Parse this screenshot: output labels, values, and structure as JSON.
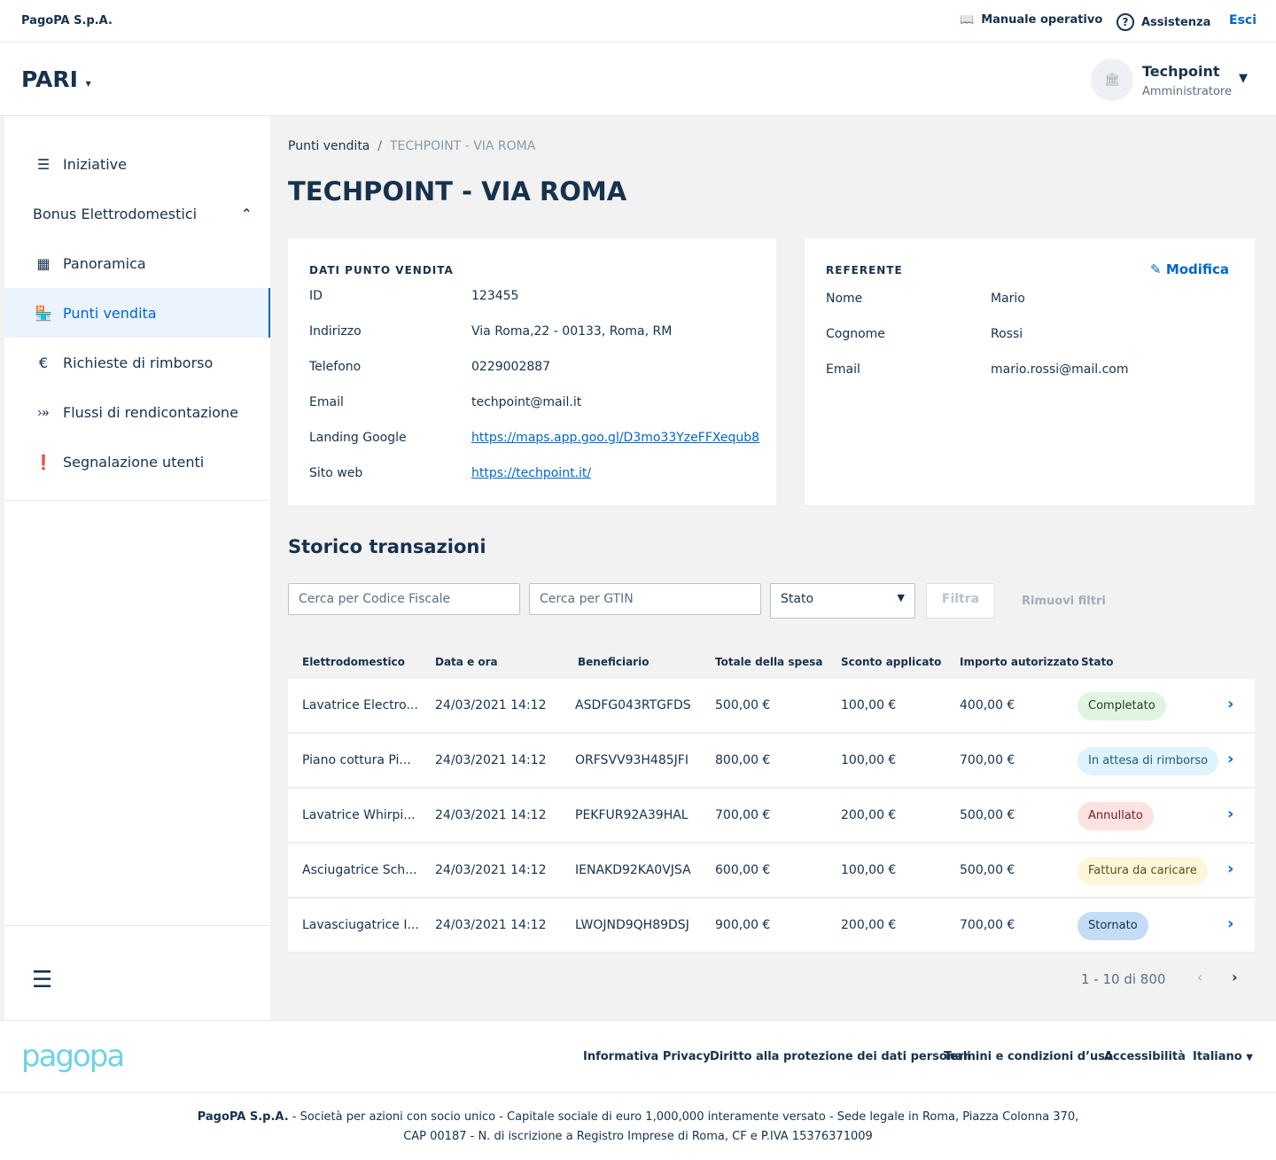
{
  "topbar": {
    "org": "PagoPA S.p.A.",
    "manual": "Manuale operativo",
    "help": "Assistenza",
    "logout": "Esci"
  },
  "header": {
    "product": "PARI",
    "party": "Techpoint",
    "role": "Amministratore"
  },
  "sidebar": {
    "items": [
      {
        "label": "Iniziative",
        "icon": "list-icon"
      },
      {
        "label": "Bonus Elettrodomestici",
        "icon": "chevron-up-icon"
      },
      {
        "label": "Panoramica",
        "icon": "dashboard-icon"
      },
      {
        "label": "Punti vendita",
        "icon": "store-icon",
        "active": true
      },
      {
        "label": "Richieste di rimborso",
        "icon": "euro-icon"
      },
      {
        "label": "Flussi di rendicontazione",
        "icon": "flow-icon"
      },
      {
        "label": "Segnalazione utenti",
        "icon": "alert-icon"
      }
    ]
  },
  "breadcrumb": {
    "parent": "Punti vendita",
    "current": "TECHPOINT - VIA ROMA"
  },
  "title": "TECHPOINT - VIA ROMA",
  "store": {
    "heading": "DATI PUNTO VENDITA",
    "fields": [
      {
        "label": "ID",
        "value": "123455"
      },
      {
        "label": "Indirizzo",
        "value": "Via Roma,22 - 00133, Roma, RM"
      },
      {
        "label": "Telefono",
        "value": "0229002887"
      },
      {
        "label": "Email",
        "value": "techpoint@mail.it"
      },
      {
        "label": "Landing Google",
        "value": "https://maps.app.goo.gl/D3mo33YzeFFXequb8",
        "link": true
      },
      {
        "label": "Sito web",
        "value": "https://techpoint.it/",
        "link": true
      }
    ]
  },
  "referent": {
    "heading": "REFERENTE",
    "edit": "Modifica",
    "fields": [
      {
        "label": "Nome",
        "value": "Mario"
      },
      {
        "label": "Cognome",
        "value": "Rossi"
      },
      {
        "label": "Email",
        "value": "mario.rossi@mail.com"
      }
    ]
  },
  "transactions": {
    "title": "Storico transazioni",
    "filters": {
      "cf_placeholder": "Cerca per Codice Fiscale",
      "gtin_placeholder": "Cerca per GTIN",
      "status": "Stato",
      "filter": "Filtra",
      "reset": "Rimuovi filtri"
    },
    "columns": [
      "Elettrodomestico",
      "Data e ora",
      "Beneficiario",
      "Totale della spesa",
      "Sconto applicato",
      "Importo autorizzato",
      "Stato"
    ],
    "rows": [
      {
        "c": [
          "Lavatrice Electro...",
          "24/03/2021 14:12",
          "ASDFG043RTGFDS",
          "500,00 €",
          "100,00 €",
          "400,00 €"
        ],
        "status": "Completato",
        "bg": "#e1f4e1",
        "fg": "#224021"
      },
      {
        "c": [
          "Piano cottura Pi...",
          "24/03/2021 14:12",
          "ORFSVV93H485JFI",
          "800,00 €",
          "100,00 €",
          "700,00 €"
        ],
        "status": "In attesa di rimborso",
        "bg": "#dff3fd",
        "fg": "#215c76"
      },
      {
        "c": [
          "Lavatrice Whirpi...",
          "24/03/2021 14:12",
          "PEKFUR92A39HAL",
          "700,00 €",
          "200,00 €",
          "500,00 €"
        ],
        "status": "Annullato",
        "bg": "#fde2e2",
        "fg": "#761f1f"
      },
      {
        "c": [
          "Asciugatrice Sch...",
          "24/03/2021 14:12",
          "IENAKD92KA0VJSA",
          "600,00 €",
          "100,00 €",
          "500,00 €"
        ],
        "status": "Fattura da caricare",
        "bg": "#fff5da",
        "fg": "#614c15"
      },
      {
        "c": [
          "Lavasciugatrice I...",
          "24/03/2021 14:12",
          "LWOJND9QH89DSJ",
          "900,00 €",
          "200,00 €",
          "700,00 €"
        ],
        "status": "Stornato",
        "bg": "#c4dcf5",
        "fg": "#17324d"
      }
    ],
    "pagination": "1 - 10 di 800"
  },
  "footer": {
    "logo": "pagopa",
    "links": [
      "Informativa Privacy",
      "Diritto alla protezione dei dati personali",
      "Termini e condizioni d’uso",
      "Accessibilità"
    ],
    "language": "Italiano",
    "legal_bold": "PagoPA S.p.A.",
    "legal_1": " - Società per azioni con socio unico - Capitale sociale di euro 1,000,000 interamente versato - Sede legale in Roma, Piazza Colonna 370,",
    "legal_2": "CAP 00187 - N. di iscrizione a Registro Imprese di Roma, CF e P.IVA 15376371009"
  }
}
